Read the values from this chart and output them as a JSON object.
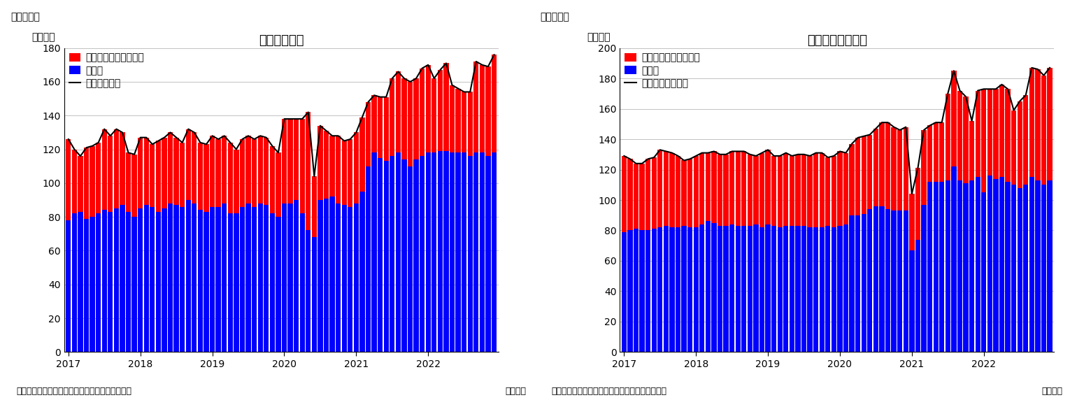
{
  "chart1_title": "住宅着工件数",
  "chart2_title": "住宅着工許可件数",
  "fig1_label": "（図表１）",
  "fig2_label": "（図表２）",
  "ylabel": "（万件）",
  "xlabel": "（月次）",
  "source": "（資料）センサス局よりニッセイ基礎研究所作成",
  "legend1_line": "住宅着工件数",
  "legend2_line": "住宅建築許可件数",
  "legend_multi": "集合住宅（二戸以上）",
  "legend_detached": "戸建て",
  "chart1_ylim": [
    0,
    180
  ],
  "chart2_ylim": [
    0,
    200
  ],
  "chart1_yticks": [
    0,
    20,
    40,
    60,
    80,
    100,
    120,
    140,
    160,
    180
  ],
  "chart2_yticks": [
    0,
    20,
    40,
    60,
    80,
    100,
    120,
    140,
    160,
    180,
    200
  ],
  "bar_color_detached": "#0000FF",
  "bar_color_multi": "#FF0000",
  "line_color": "#000000",
  "chart1_detached": [
    78,
    82,
    83,
    79,
    80,
    82,
    84,
    83,
    85,
    87,
    83,
    80,
    85,
    87,
    86,
    83,
    85,
    88,
    87,
    86,
    90,
    88,
    84,
    83,
    86,
    86,
    88,
    82,
    82,
    86,
    88,
    86,
    88,
    87,
    82,
    80,
    88,
    88,
    90,
    82,
    72,
    68,
    90,
    91,
    92,
    88,
    87,
    86,
    88,
    95,
    110,
    118,
    115,
    113,
    116,
    118,
    114,
    110,
    114,
    116,
    118,
    118,
    119,
    119,
    118,
    118,
    118,
    116,
    118,
    118,
    116,
    118
  ],
  "chart1_multi": [
    48,
    38,
    33,
    42,
    42,
    42,
    48,
    45,
    47,
    43,
    35,
    37,
    42,
    40,
    37,
    42,
    42,
    42,
    40,
    38,
    42,
    42,
    40,
    40,
    42,
    40,
    40,
    42,
    38,
    40,
    40,
    40,
    40,
    40,
    40,
    38,
    50,
    50,
    48,
    56,
    70,
    36,
    44,
    40,
    36,
    40,
    38,
    40,
    42,
    44,
    38,
    34,
    36,
    38,
    46,
    48,
    48,
    50,
    48,
    52,
    52,
    44,
    48,
    52,
    40,
    38,
    36,
    38,
    54,
    52,
    53,
    58
  ],
  "chart2_detached": [
    79,
    80,
    81,
    80,
    80,
    81,
    82,
    83,
    82,
    82,
    83,
    82,
    82,
    84,
    86,
    85,
    83,
    83,
    84,
    83,
    83,
    83,
    84,
    82,
    84,
    83,
    82,
    83,
    83,
    83,
    83,
    82,
    82,
    82,
    83,
    82,
    83,
    84,
    90,
    90,
    91,
    94,
    96,
    96,
    94,
    93,
    93,
    93,
    67,
    74,
    97,
    112,
    112,
    112,
    113,
    122,
    113,
    111,
    113,
    115,
    105,
    116,
    114,
    115,
    112,
    110,
    108,
    110,
    115,
    113,
    110,
    113
  ],
  "chart2_multi": [
    50,
    47,
    43,
    44,
    47,
    47,
    51,
    49,
    49,
    47,
    43,
    45,
    47,
    47,
    45,
    47,
    47,
    47,
    48,
    49,
    49,
    47,
    45,
    49,
    49,
    46,
    47,
    48,
    46,
    47,
    47,
    47,
    49,
    49,
    45,
    47,
    49,
    47,
    47,
    51,
    51,
    49,
    51,
    55,
    57,
    55,
    53,
    55,
    37,
    47,
    49,
    37,
    39,
    39,
    57,
    63,
    59,
    57,
    39,
    57,
    68,
    57,
    59,
    61,
    61,
    49,
    57,
    59,
    72,
    73,
    72,
    74
  ],
  "background_color": "#FFFFFF",
  "grid_color": "#AAAAAA",
  "title_fontsize": 13,
  "label_fontsize": 10,
  "tick_fontsize": 10,
  "legend_fontsize": 10,
  "source_fontsize": 9
}
